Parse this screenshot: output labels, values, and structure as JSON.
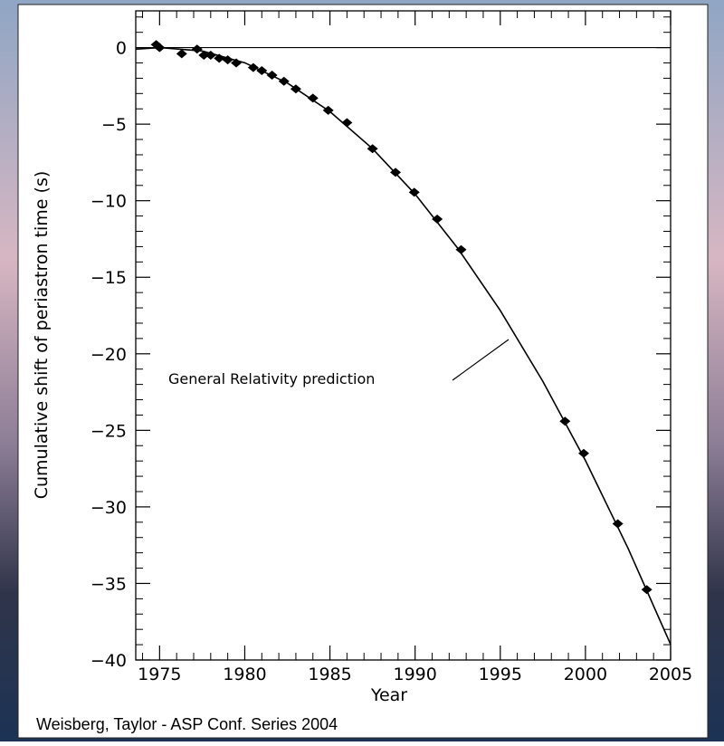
{
  "chart_data": {
    "type": "scatter",
    "x_label": "Year",
    "y_label": "Cumulative shift of periastron time (s)",
    "caption": "Weisberg, Taylor - ASP Conf. Series 2004",
    "xlim": [
      1973.6,
      2005
    ],
    "ylim": [
      -40,
      2.4
    ],
    "xticks": [
      1975,
      1980,
      1985,
      1990,
      1995,
      2000,
      2005
    ],
    "yticks": [
      0,
      {
        "value": -5,
        "label": "−5"
      },
      {
        "value": -10,
        "label": "−10"
      },
      {
        "value": -15,
        "label": "−15"
      },
      {
        "value": -20,
        "label": "−20"
      },
      {
        "value": -25,
        "label": "−25"
      },
      {
        "value": -30,
        "label": "−30"
      },
      {
        "value": -35,
        "label": "−35"
      },
      {
        "value": -40,
        "label": "−40"
      }
    ],
    "zero_line": true,
    "series": [
      {
        "type": "scatter",
        "color": "#000000",
        "x": [
          1974.8,
          1975.0,
          1976.3,
          1977.2,
          1977.6,
          1978.0,
          1978.5,
          1979.0,
          1979.5,
          1980.5,
          1981.0,
          1981.6,
          1982.3,
          1983.0,
          1984.0,
          1984.9,
          1986.0,
          1987.5,
          1988.85,
          1989.95,
          1991.3,
          1992.7,
          1998.8,
          1999.9,
          2001.9,
          2003.6
        ],
        "values": [
          0.2,
          0.0,
          -0.4,
          -0.1,
          -0.5,
          -0.5,
          -0.7,
          -0.8,
          -1.0,
          -1.3,
          -1.5,
          -1.8,
          -2.2,
          -2.7,
          -3.3,
          -4.1,
          -4.9,
          -6.6,
          -8.15,
          -9.45,
          -11.2,
          -13.2,
          -24.4,
          -26.5,
          -31.1,
          -35.4
        ]
      },
      {
        "type": "line",
        "name": "General Relativity prediction",
        "color": "#000000",
        "x": [
          1973.6,
          1975,
          1977.5,
          1980,
          1982.5,
          1985,
          1987.5,
          1990,
          1992.5,
          1995,
          1997.5,
          2000,
          2002.5,
          2005
        ],
        "values": [
          -0.1,
          0,
          -0.22,
          -0.99,
          -2.31,
          -4.18,
          -6.6,
          -9.57,
          -13.1,
          -17.17,
          -21.8,
          -26.97,
          -32.7,
          -38.98
        ]
      }
    ]
  }
}
